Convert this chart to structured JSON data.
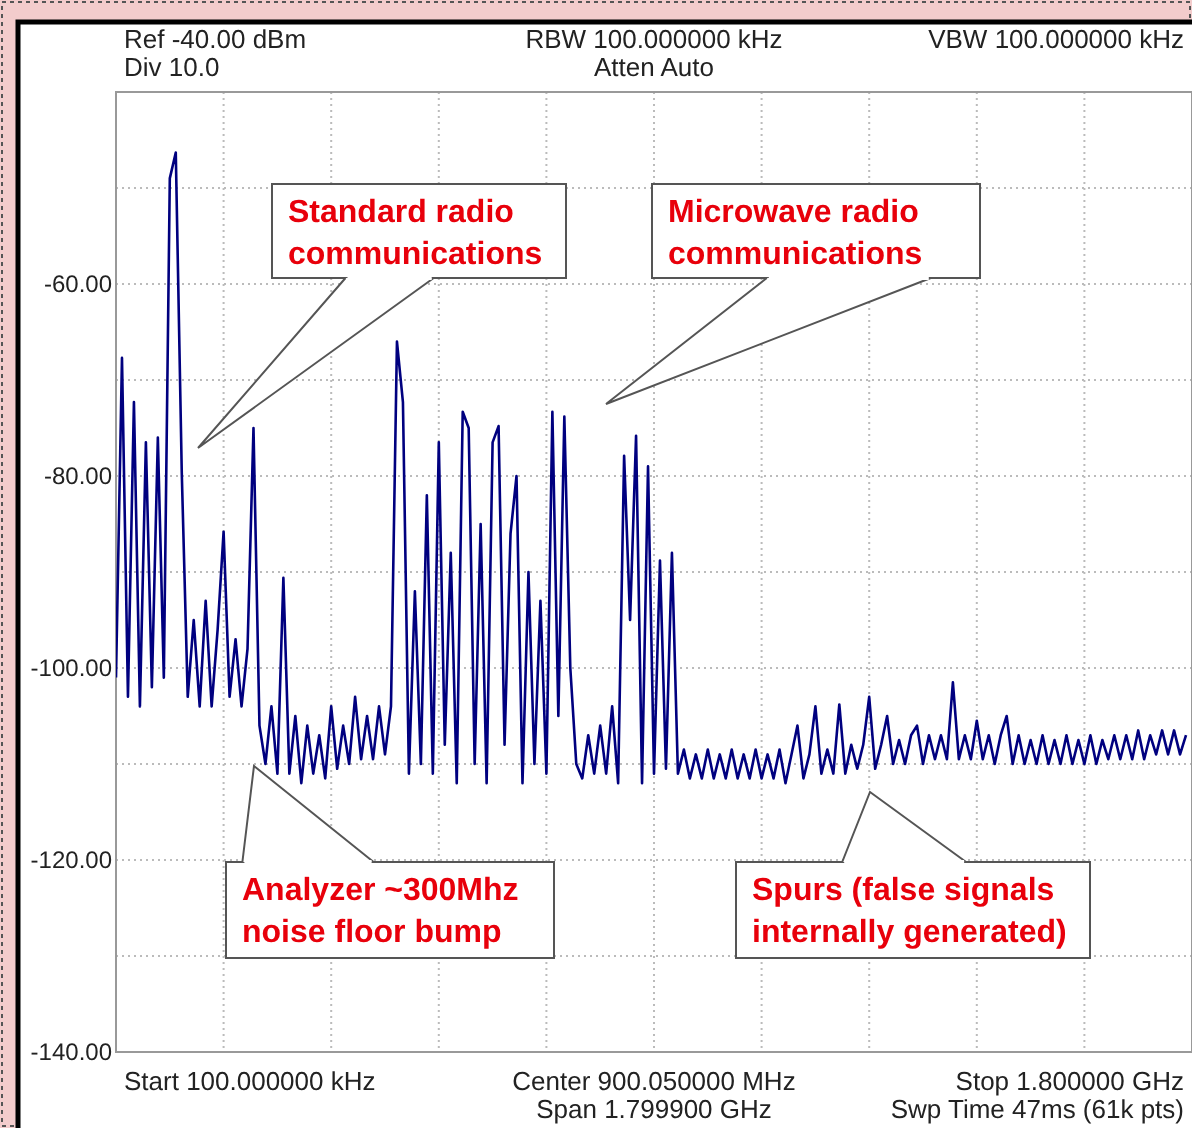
{
  "chart_data": {
    "type": "line",
    "categories": [
      null,
      null,
      null,
      null,
      null,
      null,
      null,
      null,
      null,
      null,
      null,
      null,
      null,
      null,
      null,
      null,
      null,
      null,
      null,
      null,
      null,
      null,
      null,
      null,
      null,
      null,
      null,
      null,
      null,
      null,
      null,
      null,
      null,
      null,
      null,
      null,
      null,
      null,
      null,
      null,
      null,
      null,
      null,
      null,
      null,
      null,
      null,
      null,
      null,
      null,
      null,
      null,
      null,
      null,
      null,
      null,
      null,
      null,
      null,
      null,
      null,
      null,
      null,
      null,
      null,
      null,
      null,
      null,
      null,
      null,
      null,
      null,
      null,
      null,
      null,
      null,
      null,
      null,
      null,
      null,
      null,
      null,
      null,
      null,
      null,
      null,
      null,
      null,
      null,
      null,
      null,
      null,
      null,
      null,
      null,
      null,
      null,
      null,
      null,
      null,
      null,
      null,
      null,
      null,
      null,
      null,
      null,
      null,
      null,
      null,
      null,
      null,
      null,
      null,
      null,
      null,
      null,
      null,
      null,
      null,
      null,
      null,
      null,
      null,
      null,
      null,
      null,
      null,
      null,
      null,
      null,
      null,
      null,
      null,
      null,
      null,
      null,
      null,
      null,
      null,
      null,
      null,
      null,
      null,
      null,
      null,
      null,
      null,
      null,
      null,
      null,
      null,
      null,
      null,
      null,
      null,
      null,
      null,
      null,
      null,
      null,
      null,
      null,
      null,
      null,
      null,
      null,
      null,
      null,
      null,
      null,
      null,
      null,
      null,
      null,
      null,
      null,
      null,
      null,
      null
    ],
    "series": [
      {
        "color": "#00007f",
        "values": [
          -101,
          -67.7,
          -103,
          -72.3,
          -104,
          -76.5,
          -102,
          -76,
          -101,
          -49,
          -46.3,
          -79.6,
          -103,
          -95,
          -104,
          -93,
          -104,
          -96,
          -85.8,
          -103,
          -97,
          -104,
          -98,
          -75,
          -106,
          -110,
          -104,
          -111,
          -90.6,
          -111,
          -105,
          -112,
          -106,
          -111,
          -107,
          -111.5,
          -104,
          -110.5,
          -106,
          -110,
          -103,
          -109.5,
          -105,
          -109.5,
          -104,
          -109,
          -104,
          -66,
          -72.3,
          -111,
          -92,
          -110,
          -82,
          -111,
          -76.5,
          -108,
          -88,
          -112,
          -73.3,
          -75,
          -110,
          -85,
          -112,
          -76.5,
          -74.8,
          -108,
          -86,
          -80,
          -112,
          -90,
          -110,
          -93,
          -111,
          -73.3,
          -105,
          -73.8,
          -100,
          -110,
          -111.5,
          -107,
          -111,
          -106,
          -111,
          -104,
          -112,
          -77.9,
          -95,
          -75.8,
          -112,
          -79,
          -111,
          -88.8,
          -110.5,
          -88,
          -111,
          -108.5,
          -111.5,
          -109,
          -111.5,
          -108.5,
          -111.5,
          -109,
          -111.5,
          -108.5,
          -111.5,
          -109,
          -111.5,
          -108.5,
          -111.5,
          -109,
          -111.5,
          -108.5,
          -112,
          -109,
          -106,
          -111.5,
          -109,
          -104,
          -111,
          -108.5,
          -111,
          -103.8,
          -111,
          -108,
          -110.5,
          -108,
          -103,
          -110.5,
          -108,
          -105,
          -110,
          -107.5,
          -110,
          -107,
          -106,
          -110,
          -107,
          -109.5,
          -107,
          -109.5,
          -101.5,
          -109.5,
          -107,
          -109.5,
          -105.5,
          -109.5,
          -107,
          -110,
          -107,
          -105,
          -110,
          -107,
          -110,
          -107.5,
          -110,
          -107,
          -110,
          -107.5,
          -110,
          -107,
          -110,
          -107.5,
          -110,
          -107,
          -110,
          -107.5,
          -109.5,
          -107,
          -109.5,
          -107,
          -109.5,
          -106.5,
          -109.5,
          -107,
          -109,
          -106.5,
          -109,
          -106.5,
          -109,
          -107
        ]
      }
    ],
    "ylim": [
      -140,
      -40
    ],
    "yticks": [
      {
        "value": -140,
        "label": "-140.00"
      },
      {
        "value": -130,
        "label": null
      },
      {
        "value": -120,
        "label": "-120.00"
      },
      {
        "value": -110,
        "label": null
      },
      {
        "value": -100,
        "label": "-100.00"
      },
      {
        "value": -90,
        "label": null
      },
      {
        "value": -80,
        "label": "-80.00"
      },
      {
        "value": -70,
        "label": null
      },
      {
        "value": -60,
        "label": "-60.00"
      },
      {
        "value": -50,
        "label": null
      },
      {
        "value": -40,
        "label": null
      }
    ],
    "grid": true,
    "tick_labels": "y",
    "annotations": [
      "Ref -40.00 dBm",
      "Div 10.0",
      "RBW 100.000000 kHz",
      "Atten Auto",
      "VBW 100.000000 kHz",
      "Start 100.000000 kHz",
      "Center 900.050000 MHz",
      "Span 1.799900 GHz",
      "Stop 1.800000 GHz",
      "Swp Time 47ms (61k pts)",
      "Standard radio communications",
      "Microwave radio communications",
      "Analyzer ~300Mhz noise floor bump",
      "Spurs (false signals internally generated)"
    ]
  }
}
